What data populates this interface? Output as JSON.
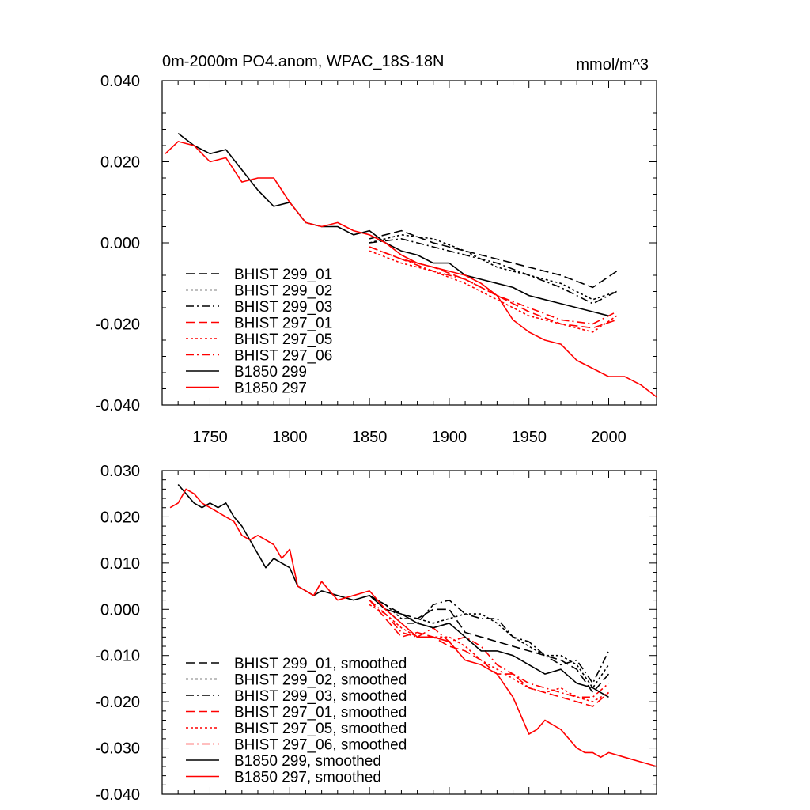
{
  "chart_data": [
    {
      "type": "line",
      "title": "0m-2000m PO4.anom, WPAC_18S-18N",
      "units": "mmol/m^3",
      "xlim": [
        1720,
        2030
      ],
      "ylim": [
        -0.04,
        0.04
      ],
      "x_ticks": [
        1750,
        1800,
        1850,
        1900,
        1950,
        2000
      ],
      "x_tick_labels": [
        "1750",
        "1800",
        "1850",
        "1900",
        "1950",
        "2000"
      ],
      "y_ticks": [
        -0.04,
        -0.02,
        0.0,
        0.02,
        0.04
      ],
      "y_tick_labels": [
        "-0.040",
        "-0.020",
        "0.000",
        "0.020",
        "0.040"
      ],
      "legend_position": "lower-left",
      "series": [
        {
          "name": "BHIST 299_01",
          "color": "#000000",
          "dash": "dashed",
          "x": [
            1850,
            1870,
            1890,
            1910,
            1930,
            1950,
            1970,
            1990,
            2005
          ],
          "y": [
            0.001,
            0.003,
            0.0,
            -0.002,
            -0.004,
            -0.006,
            -0.008,
            -0.011,
            -0.007
          ]
        },
        {
          "name": "BHIST 299_02",
          "color": "#000000",
          "dash": "dotted",
          "x": [
            1850,
            1870,
            1890,
            1910,
            1930,
            1950,
            1970,
            1990,
            2005
          ],
          "y": [
            0.0,
            0.002,
            0.001,
            -0.002,
            -0.006,
            -0.008,
            -0.01,
            -0.014,
            -0.012
          ]
        },
        {
          "name": "BHIST 299_03",
          "color": "#000000",
          "dash": "dashdot",
          "x": [
            1850,
            1870,
            1890,
            1910,
            1930,
            1950,
            1970,
            1990,
            2005
          ],
          "y": [
            0.0,
            0.001,
            -0.001,
            -0.003,
            -0.005,
            -0.008,
            -0.011,
            -0.015,
            -0.012
          ]
        },
        {
          "name": "BHIST 297_01",
          "color": "#ff0000",
          "dash": "dashed",
          "x": [
            1850,
            1870,
            1890,
            1910,
            1930,
            1950,
            1970,
            1990,
            2005
          ],
          "y": [
            -0.001,
            -0.004,
            -0.006,
            -0.009,
            -0.013,
            -0.017,
            -0.02,
            -0.021,
            -0.019
          ]
        },
        {
          "name": "BHIST 297_05",
          "color": "#ff0000",
          "dash": "dotted",
          "x": [
            1850,
            1870,
            1890,
            1910,
            1930,
            1950,
            1970,
            1990,
            2005
          ],
          "y": [
            -0.002,
            -0.005,
            -0.007,
            -0.01,
            -0.014,
            -0.018,
            -0.02,
            -0.022,
            -0.018
          ]
        },
        {
          "name": "BHIST 297_06",
          "color": "#ff0000",
          "dash": "dashdot",
          "x": [
            1850,
            1870,
            1890,
            1910,
            1930,
            1950,
            1970,
            1990,
            2005
          ],
          "y": [
            -0.001,
            -0.004,
            -0.007,
            -0.009,
            -0.013,
            -0.016,
            -0.019,
            -0.02,
            -0.017
          ]
        },
        {
          "name": "B1850 299",
          "color": "#000000",
          "dash": "solid",
          "x": [
            1730,
            1740,
            1750,
            1760,
            1770,
            1780,
            1790,
            1800,
            1810,
            1820,
            1830,
            1840,
            1850,
            1860,
            1870,
            1880,
            1890,
            1900,
            1910,
            1920,
            1930,
            1940,
            1950,
            1960,
            1970,
            1980,
            1990,
            2000
          ],
          "y": [
            0.027,
            0.024,
            0.022,
            0.023,
            0.018,
            0.013,
            0.009,
            0.01,
            0.005,
            0.004,
            0.004,
            0.002,
            0.003,
            0.0,
            -0.002,
            -0.003,
            -0.005,
            -0.005,
            -0.008,
            -0.009,
            -0.01,
            -0.011,
            -0.013,
            -0.014,
            -0.015,
            -0.016,
            -0.017,
            -0.018
          ]
        },
        {
          "name": "B1850 297",
          "color": "#ff0000",
          "dash": "solid",
          "x": [
            1722,
            1730,
            1740,
            1750,
            1760,
            1770,
            1780,
            1790,
            1800,
            1810,
            1820,
            1830,
            1840,
            1850,
            1860,
            1870,
            1880,
            1890,
            1900,
            1910,
            1920,
            1930,
            1940,
            1950,
            1960,
            1970,
            1980,
            1990,
            2000,
            2010,
            2020,
            2030
          ],
          "y": [
            0.022,
            0.025,
            0.024,
            0.02,
            0.021,
            0.015,
            0.016,
            0.016,
            0.01,
            0.005,
            0.004,
            0.005,
            0.003,
            0.002,
            0.0,
            -0.003,
            -0.005,
            -0.006,
            -0.007,
            -0.008,
            -0.01,
            -0.013,
            -0.019,
            -0.022,
            -0.024,
            -0.025,
            -0.029,
            -0.031,
            -0.033,
            -0.033,
            -0.035,
            -0.038
          ]
        }
      ]
    },
    {
      "type": "line",
      "xlim": [
        1720,
        2030
      ],
      "ylim": [
        -0.04,
        0.03
      ],
      "x_ticks": [
        1750,
        1800,
        1850,
        1900,
        1950,
        2000
      ],
      "y_ticks": [
        -0.04,
        -0.03,
        -0.02,
        -0.01,
        0.0,
        0.01,
        0.02,
        0.03
      ],
      "y_tick_labels": [
        "-0.040",
        "-0.030",
        "-0.020",
        "-0.010",
        "0.000",
        "0.010",
        "0.020",
        "0.030"
      ],
      "legend_position": "lower-left",
      "series": [
        {
          "name": "BHIST 299_01, smoothed",
          "color": "#000000",
          "dash": "dashed",
          "x": [
            1850,
            1860,
            1870,
            1880,
            1890,
            1900,
            1910,
            1920,
            1930,
            1940,
            1950,
            1960,
            1970,
            1980,
            1990,
            2000
          ],
          "y": [
            0.003,
            0.001,
            -0.001,
            -0.002,
            0.0,
            0.0,
            -0.005,
            -0.006,
            -0.007,
            -0.008,
            -0.009,
            -0.01,
            -0.011,
            -0.013,
            -0.018,
            -0.014
          ]
        },
        {
          "name": "BHIST 299_02, smoothed",
          "color": "#000000",
          "dash": "dotted",
          "x": [
            1850,
            1860,
            1870,
            1880,
            1890,
            1900,
            1910,
            1920,
            1930,
            1940,
            1950,
            1960,
            1970,
            1980,
            1990,
            2000
          ],
          "y": [
            0.003,
            0.001,
            -0.002,
            -0.002,
            -0.003,
            -0.002,
            -0.001,
            -0.001,
            -0.003,
            -0.006,
            -0.008,
            -0.01,
            -0.01,
            -0.012,
            -0.017,
            -0.012
          ]
        },
        {
          "name": "BHIST 299_03, smoothed",
          "color": "#000000",
          "dash": "dashdot",
          "x": [
            1850,
            1860,
            1870,
            1880,
            1890,
            1900,
            1910,
            1920,
            1930,
            1940,
            1950,
            1960,
            1970,
            1980,
            1990,
            2000
          ],
          "y": [
            0.003,
            0.0,
            -0.003,
            -0.003,
            0.001,
            0.002,
            -0.001,
            -0.002,
            -0.002,
            -0.006,
            -0.007,
            -0.01,
            -0.012,
            -0.011,
            -0.016,
            -0.009
          ]
        },
        {
          "name": "BHIST 297_01, smoothed",
          "color": "#ff0000",
          "dash": "dashed",
          "x": [
            1850,
            1860,
            1870,
            1880,
            1890,
            1900,
            1910,
            1920,
            1930,
            1940,
            1950,
            1960,
            1970,
            1980,
            1990,
            2000
          ],
          "y": [
            0.002,
            -0.002,
            -0.006,
            -0.005,
            -0.006,
            -0.008,
            -0.009,
            -0.011,
            -0.014,
            -0.014,
            -0.017,
            -0.018,
            -0.019,
            -0.02,
            -0.021,
            -0.018
          ]
        },
        {
          "name": "BHIST 297_05, smoothed",
          "color": "#ff0000",
          "dash": "dotted",
          "x": [
            1850,
            1860,
            1870,
            1880,
            1890,
            1900,
            1910,
            1920,
            1930,
            1940,
            1950,
            1960,
            1970,
            1980,
            1990,
            2000
          ],
          "y": [
            0.001,
            -0.001,
            -0.004,
            -0.006,
            -0.006,
            -0.006,
            -0.008,
            -0.011,
            -0.013,
            -0.015,
            -0.017,
            -0.018,
            -0.017,
            -0.019,
            -0.02,
            -0.018
          ]
        },
        {
          "name": "BHIST 297_06, smoothed",
          "color": "#ff0000",
          "dash": "dashdot",
          "x": [
            1850,
            1860,
            1870,
            1880,
            1890,
            1900,
            1910,
            1920,
            1930,
            1940,
            1950,
            1960,
            1970,
            1980,
            1990,
            2000
          ],
          "y": [
            0.002,
            -0.001,
            -0.005,
            -0.006,
            -0.004,
            -0.007,
            -0.006,
            -0.008,
            -0.012,
            -0.014,
            -0.016,
            -0.017,
            -0.018,
            -0.019,
            -0.019,
            -0.016
          ]
        },
        {
          "name": "B1850 299, smoothed",
          "color": "#000000",
          "dash": "solid",
          "x": [
            1730,
            1735,
            1740,
            1745,
            1750,
            1755,
            1760,
            1765,
            1770,
            1775,
            1780,
            1785,
            1790,
            1795,
            1800,
            1805,
            1810,
            1815,
            1820,
            1830,
            1840,
            1850,
            1860,
            1870,
            1880,
            1890,
            1900,
            1910,
            1920,
            1930,
            1940,
            1950,
            1960,
            1970,
            1980,
            1990,
            2000
          ],
          "y": [
            0.027,
            0.025,
            0.023,
            0.022,
            0.023,
            0.022,
            0.023,
            0.02,
            0.018,
            0.015,
            0.012,
            0.009,
            0.011,
            0.01,
            0.009,
            0.005,
            0.004,
            0.003,
            0.004,
            0.003,
            0.002,
            0.003,
            0.0,
            -0.001,
            -0.003,
            -0.004,
            -0.003,
            -0.006,
            -0.009,
            -0.009,
            -0.01,
            -0.012,
            -0.014,
            -0.013,
            -0.016,
            -0.017,
            -0.019
          ]
        },
        {
          "name": "B1850 297, smoothed",
          "color": "#ff0000",
          "dash": "solid",
          "x": [
            1725,
            1730,
            1735,
            1740,
            1745,
            1750,
            1755,
            1760,
            1765,
            1770,
            1775,
            1780,
            1785,
            1790,
            1795,
            1800,
            1805,
            1810,
            1815,
            1820,
            1830,
            1840,
            1850,
            1860,
            1870,
            1880,
            1890,
            1900,
            1910,
            1920,
            1930,
            1940,
            1945,
            1950,
            1955,
            1960,
            1965,
            1970,
            1975,
            1980,
            1985,
            1990,
            1995,
            2000,
            2010,
            2020,
            2030
          ],
          "y": [
            0.022,
            0.023,
            0.026,
            0.025,
            0.023,
            0.022,
            0.021,
            0.02,
            0.019,
            0.016,
            0.015,
            0.016,
            0.015,
            0.014,
            0.011,
            0.013,
            0.005,
            0.004,
            0.003,
            0.006,
            0.002,
            0.003,
            0.004,
            0.0,
            -0.003,
            -0.006,
            -0.006,
            -0.007,
            -0.011,
            -0.012,
            -0.014,
            -0.019,
            -0.023,
            -0.027,
            -0.026,
            -0.024,
            -0.025,
            -0.026,
            -0.028,
            -0.03,
            -0.031,
            -0.031,
            -0.032,
            -0.031,
            -0.032,
            -0.033,
            -0.034
          ]
        }
      ]
    }
  ]
}
